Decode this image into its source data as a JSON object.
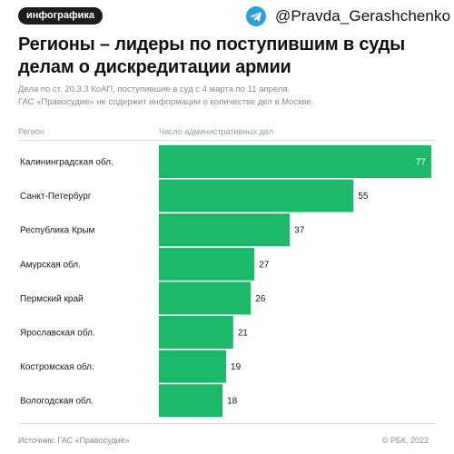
{
  "header": {
    "badge": "инфографика",
    "handle": "@Pravda_Gerashchenko",
    "handle_icon": "telegram-icon"
  },
  "colors": {
    "bar": "#1db96a",
    "text": "#1a1a1a",
    "inner_label": "#ffffff",
    "muted": "#8a8a8a",
    "telegram": "#2aa1da"
  },
  "chart_data": {
    "type": "bar",
    "orientation": "horizontal",
    "title": "Регионы – лидеры по поступившим в суды делам о дискредитации армии",
    "subtitle_lines": [
      "Дела по ст. 20.3.3 КоАП, поступившие в суд с 4 марта по 11 апреля.",
      "ГАС «Правосудие» не содержит информации о количестве дел в Москве."
    ],
    "region_header": "Регион",
    "value_header": "Число административных дел",
    "categories": [
      "Калининградская обл.",
      "Санкт-Петербург",
      "Республика Крым",
      "Амурская обл.",
      "Пермский край",
      "Ярославская обл.",
      "Костромская обл.",
      "Вологодская обл."
    ],
    "values": [
      77,
      55,
      37,
      27,
      26,
      21,
      19,
      18
    ],
    "xlim": [
      0,
      77
    ],
    "grid": false,
    "legend": "none"
  },
  "footer": {
    "source": "Источник: ГАС «Правосудие»",
    "copyright": "© РБК, 2022"
  }
}
